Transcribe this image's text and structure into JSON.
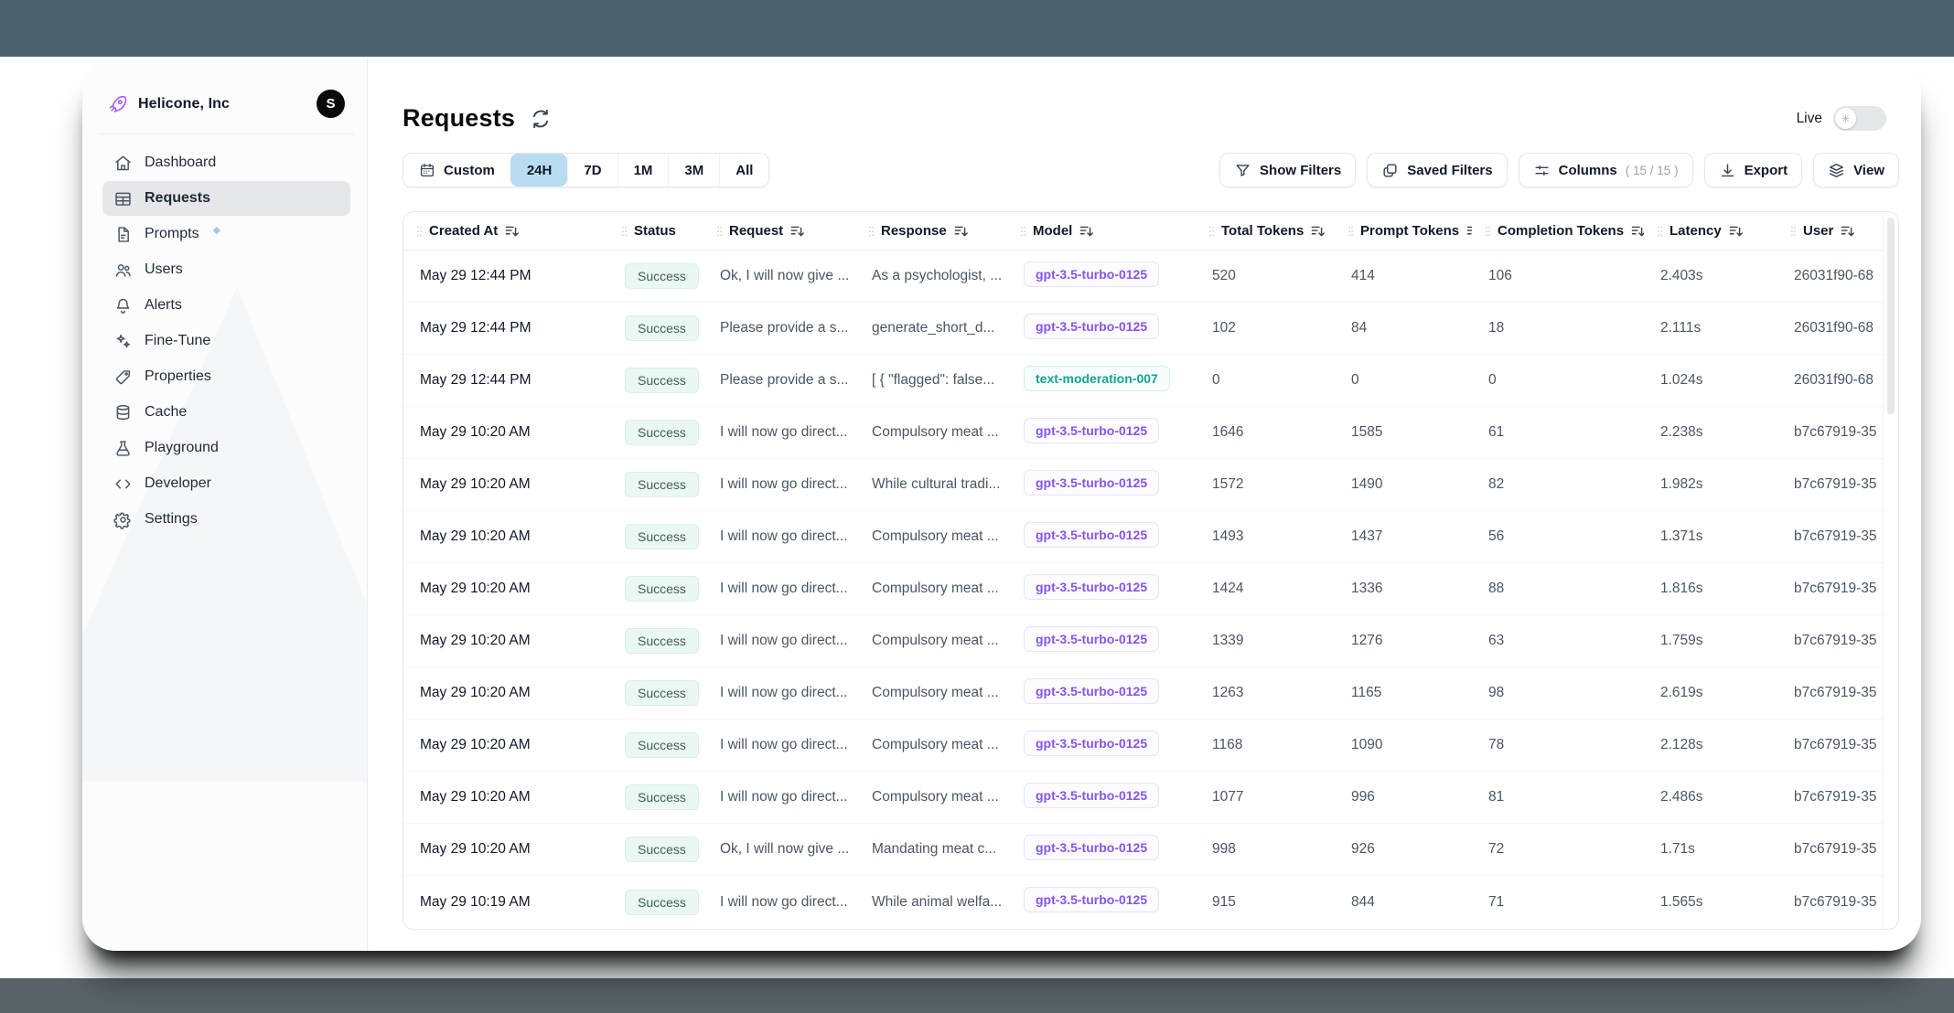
{
  "org": {
    "name": "Helicone, Inc",
    "avatar_initial": "S"
  },
  "sidebar": {
    "items": [
      {
        "label": "Dashboard",
        "icon": "home-icon",
        "active": false
      },
      {
        "label": "Requests",
        "icon": "table-icon",
        "active": true
      },
      {
        "label": "Prompts",
        "icon": "document-icon",
        "active": false,
        "badge": "diamond"
      },
      {
        "label": "Users",
        "icon": "users-icon",
        "active": false
      },
      {
        "label": "Alerts",
        "icon": "bell-icon",
        "active": false
      },
      {
        "label": "Fine-Tune",
        "icon": "sparkles-icon",
        "active": false
      },
      {
        "label": "Properties",
        "icon": "tag-icon",
        "active": false
      },
      {
        "label": "Cache",
        "icon": "database-icon",
        "active": false
      },
      {
        "label": "Playground",
        "icon": "beaker-icon",
        "active": false
      },
      {
        "label": "Developer",
        "icon": "code-icon",
        "active": false
      },
      {
        "label": "Settings",
        "icon": "gear-icon",
        "active": false
      }
    ]
  },
  "header": {
    "title": "Requests",
    "live_label": "Live"
  },
  "time_range": {
    "custom_label": "Custom",
    "options": [
      "24H",
      "7D",
      "1M",
      "3M",
      "All"
    ],
    "selected": "24H"
  },
  "toolbar": {
    "show_filters": "Show Filters",
    "saved_filters": "Saved Filters",
    "columns_label": "Columns",
    "columns_count": "( 15 / 15 )",
    "export_label": "Export",
    "view_label": "View"
  },
  "colors": {
    "accent_blue": "#b9dcf2",
    "success_bg": "#e9f8f0",
    "model_violet": "#8655e8",
    "model_teal": "#14a394",
    "backdrop_top": "#4b626d"
  },
  "table": {
    "columns": [
      {
        "label": "Created At",
        "sortable": true
      },
      {
        "label": "Status",
        "sortable": false
      },
      {
        "label": "Request",
        "sortable": true
      },
      {
        "label": "Response",
        "sortable": true
      },
      {
        "label": "Model",
        "sortable": true
      },
      {
        "label": "Total Tokens",
        "sortable": true
      },
      {
        "label": "Prompt Tokens",
        "sortable": true
      },
      {
        "label": "Completion Tokens",
        "sortable": true
      },
      {
        "label": "Latency",
        "sortable": true
      },
      {
        "label": "User",
        "sortable": true
      }
    ],
    "rows": [
      {
        "created_at": "May 29 12:44 PM",
        "status": "Success",
        "request": "Ok, I will now give ...",
        "response": "As a psychologist, ...",
        "model": "gpt-3.5-turbo-0125",
        "model_color": "violet",
        "total_tokens": "520",
        "prompt_tokens": "414",
        "completion_tokens": "106",
        "latency": "2.403s",
        "user": "26031f90-68"
      },
      {
        "created_at": "May 29 12:44 PM",
        "status": "Success",
        "request": "Please provide a s...",
        "response": "generate_short_d...",
        "model": "gpt-3.5-turbo-0125",
        "model_color": "violet",
        "total_tokens": "102",
        "prompt_tokens": "84",
        "completion_tokens": "18",
        "latency": "2.111s",
        "user": "26031f90-68"
      },
      {
        "created_at": "May 29 12:44 PM",
        "status": "Success",
        "request": "Please provide a s...",
        "response": "[ { \"flagged\": false...",
        "model": "text-moderation-007",
        "model_color": "teal",
        "total_tokens": "0",
        "prompt_tokens": "0",
        "completion_tokens": "0",
        "latency": "1.024s",
        "user": "26031f90-68"
      },
      {
        "created_at": "May 29 10:20 AM",
        "status": "Success",
        "request": "I will now go direct...",
        "response": "Compulsory meat ...",
        "model": "gpt-3.5-turbo-0125",
        "model_color": "violet",
        "total_tokens": "1646",
        "prompt_tokens": "1585",
        "completion_tokens": "61",
        "latency": "2.238s",
        "user": "b7c67919-35"
      },
      {
        "created_at": "May 29 10:20 AM",
        "status": "Success",
        "request": "I will now go direct...",
        "response": "While cultural tradi...",
        "model": "gpt-3.5-turbo-0125",
        "model_color": "violet",
        "total_tokens": "1572",
        "prompt_tokens": "1490",
        "completion_tokens": "82",
        "latency": "1.982s",
        "user": "b7c67919-35"
      },
      {
        "created_at": "May 29 10:20 AM",
        "status": "Success",
        "request": "I will now go direct...",
        "response": "Compulsory meat ...",
        "model": "gpt-3.5-turbo-0125",
        "model_color": "violet",
        "total_tokens": "1493",
        "prompt_tokens": "1437",
        "completion_tokens": "56",
        "latency": "1.371s",
        "user": "b7c67919-35"
      },
      {
        "created_at": "May 29 10:20 AM",
        "status": "Success",
        "request": "I will now go direct...",
        "response": "Compulsory meat ...",
        "model": "gpt-3.5-turbo-0125",
        "model_color": "violet",
        "total_tokens": "1424",
        "prompt_tokens": "1336",
        "completion_tokens": "88",
        "latency": "1.816s",
        "user": "b7c67919-35"
      },
      {
        "created_at": "May 29 10:20 AM",
        "status": "Success",
        "request": "I will now go direct...",
        "response": "Compulsory meat ...",
        "model": "gpt-3.5-turbo-0125",
        "model_color": "violet",
        "total_tokens": "1339",
        "prompt_tokens": "1276",
        "completion_tokens": "63",
        "latency": "1.759s",
        "user": "b7c67919-35"
      },
      {
        "created_at": "May 29 10:20 AM",
        "status": "Success",
        "request": "I will now go direct...",
        "response": "Compulsory meat ...",
        "model": "gpt-3.5-turbo-0125",
        "model_color": "violet",
        "total_tokens": "1263",
        "prompt_tokens": "1165",
        "completion_tokens": "98",
        "latency": "2.619s",
        "user": "b7c67919-35"
      },
      {
        "created_at": "May 29 10:20 AM",
        "status": "Success",
        "request": "I will now go direct...",
        "response": "Compulsory meat ...",
        "model": "gpt-3.5-turbo-0125",
        "model_color": "violet",
        "total_tokens": "1168",
        "prompt_tokens": "1090",
        "completion_tokens": "78",
        "latency": "2.128s",
        "user": "b7c67919-35"
      },
      {
        "created_at": "May 29 10:20 AM",
        "status": "Success",
        "request": "I will now go direct...",
        "response": "Compulsory meat ...",
        "model": "gpt-3.5-turbo-0125",
        "model_color": "violet",
        "total_tokens": "1077",
        "prompt_tokens": "996",
        "completion_tokens": "81",
        "latency": "2.486s",
        "user": "b7c67919-35"
      },
      {
        "created_at": "May 29 10:20 AM",
        "status": "Success",
        "request": "Ok, I will now give ...",
        "response": "Mandating meat c...",
        "model": "gpt-3.5-turbo-0125",
        "model_color": "violet",
        "total_tokens": "998",
        "prompt_tokens": "926",
        "completion_tokens": "72",
        "latency": "1.71s",
        "user": "b7c67919-35"
      },
      {
        "created_at": "May 29 10:19 AM",
        "status": "Success",
        "request": "I will now go direct...",
        "response": "While animal welfa...",
        "model": "gpt-3.5-turbo-0125",
        "model_color": "violet",
        "total_tokens": "915",
        "prompt_tokens": "844",
        "completion_tokens": "71",
        "latency": "1.565s",
        "user": "b7c67919-35"
      }
    ]
  }
}
